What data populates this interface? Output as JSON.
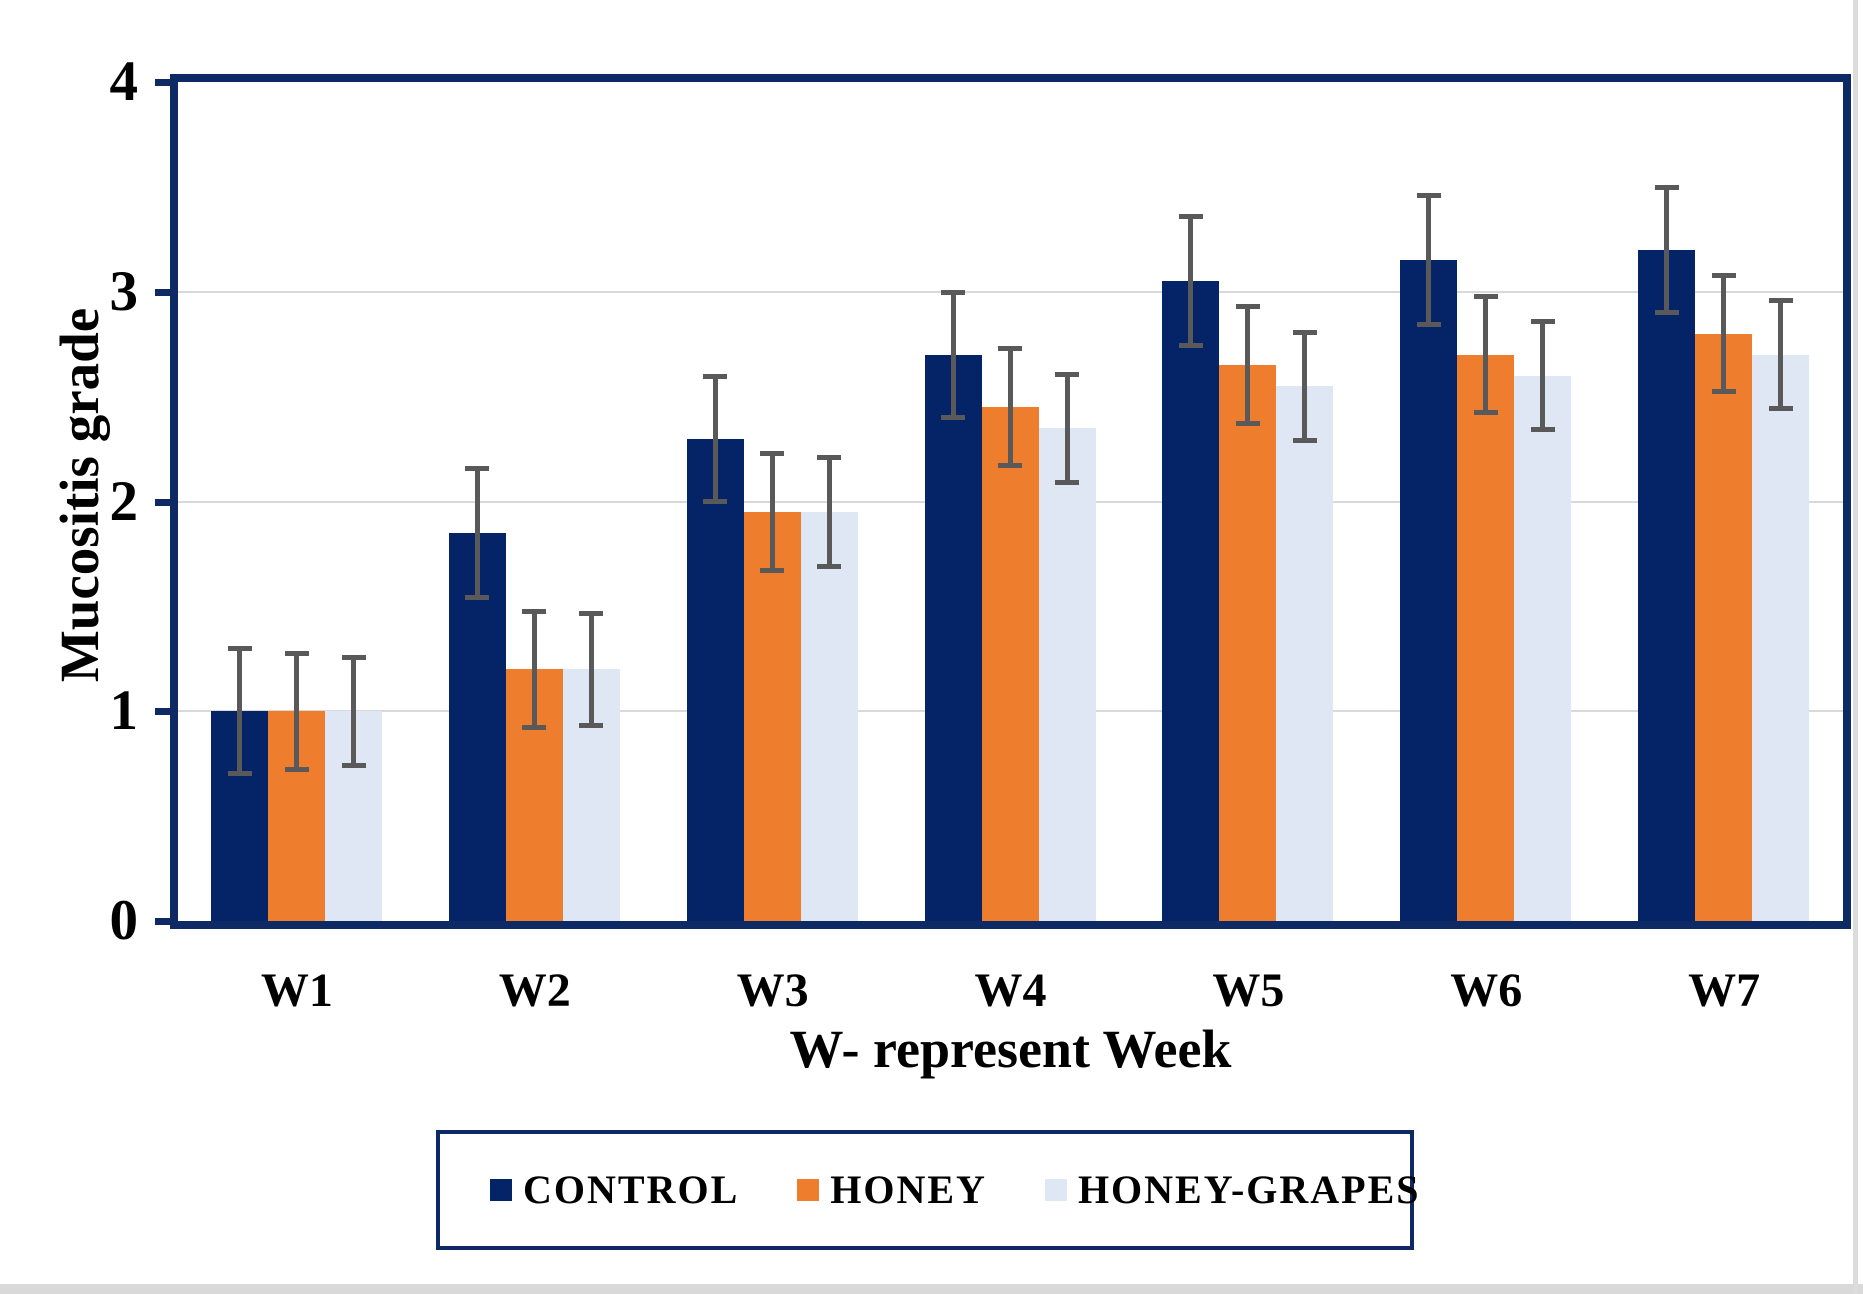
{
  "figure": {
    "y_axis_title": "Mucositis grade",
    "x_axis_title": "W- represent Week"
  },
  "chart_data": {
    "type": "bar",
    "title": "",
    "xlabel": "W- represent Week",
    "ylabel": "Mucositis grade",
    "categories": [
      "W1",
      "W2",
      "W3",
      "W4",
      "W5",
      "W6",
      "W7"
    ],
    "series": [
      {
        "name": "CONTROL",
        "color": "#042467",
        "values": [
          1.0,
          1.85,
          2.3,
          2.7,
          3.05,
          3.15,
          3.2
        ],
        "errors": [
          0.3,
          0.31,
          0.3,
          0.3,
          0.31,
          0.31,
          0.3
        ]
      },
      {
        "name": "HONEY",
        "color": "#EE7D2E",
        "values": [
          1.0,
          1.2,
          1.95,
          2.45,
          2.65,
          2.7,
          2.8
        ],
        "errors": [
          0.28,
          0.28,
          0.28,
          0.28,
          0.28,
          0.28,
          0.28
        ]
      },
      {
        "name": "HONEY-GRAPES",
        "color": "#DEE7F3",
        "values": [
          1.0,
          1.2,
          1.95,
          2.35,
          2.55,
          2.6,
          2.7
        ],
        "errors": [
          0.26,
          0.27,
          0.26,
          0.26,
          0.26,
          0.26,
          0.26
        ]
      }
    ],
    "ylim": [
      0,
      4
    ],
    "yticks": [
      0,
      1,
      2,
      3,
      4
    ],
    "grid": true,
    "error_bars": true,
    "legend_position": "bottom"
  },
  "colors": {
    "frame": "#0E2A64",
    "gridline": "#D9D9D9",
    "error_bar": "#595959",
    "text": "#000000",
    "background": "#FFFFFF",
    "edge_strip": "#D9D9D9"
  }
}
